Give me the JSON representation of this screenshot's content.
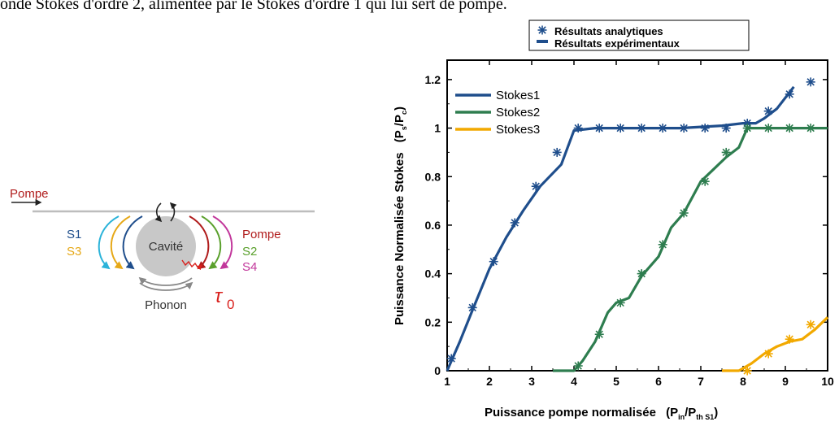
{
  "caption": "onde Stokes d'ordre 2, alimentée par le Stokes d'ordre 1 qui lui sert de pompe.",
  "diagram": {
    "pump_label": "Pompe",
    "left_labels": [
      "S1",
      "S3"
    ],
    "right_labels": [
      "Pompe",
      "S2",
      "S4"
    ],
    "cavity_label": "Cavité",
    "phonon_label": "Phonon",
    "loss_symbol": "τ",
    "loss_subscript": "0"
  },
  "chart_data": {
    "type": "line",
    "xlabel_main": "Puissance pompe normalisée",
    "xlabel_frac": "(P",
    "xlabel_sub1": "in",
    "xlabel_slash": "/P",
    "xlabel_sub2": "th S1",
    "xlabel_close": ")",
    "ylabel_main": "Puissance Normalisée Stokes",
    "ylabel_frac": "(P",
    "ylabel_sub1": "s",
    "ylabel_slash": "/P",
    "ylabel_sub2": "c",
    "ylabel_close": ")",
    "xlim": [
      1,
      10
    ],
    "ylim": [
      0,
      1.28
    ],
    "xticks": [
      "1",
      "2",
      "3",
      "4",
      "5",
      "6",
      "7",
      "8",
      "9",
      "10"
    ],
    "yticks": [
      {
        "v": 0,
        "label": "0"
      },
      {
        "v": 0.2,
        "label": "0.2"
      },
      {
        "v": 0.4,
        "label": "0.4"
      },
      {
        "v": 0.6,
        "label": "0.6"
      },
      {
        "v": 0.8,
        "label": "0.8"
      },
      {
        "v": 1.0,
        "label": "1"
      },
      {
        "v": 1.2,
        "label": "1.2"
      }
    ],
    "legend_top": [
      "Résultats analytiques",
      "Résultats expérimentaux"
    ],
    "series": [
      {
        "name": "Stokes1",
        "color": "#1f4e8c",
        "line": [
          [
            1,
            0
          ],
          [
            1.3,
            0.12
          ],
          [
            1.6,
            0.25
          ],
          [
            2,
            0.42
          ],
          [
            2.4,
            0.55
          ],
          [
            2.8,
            0.66
          ],
          [
            3.2,
            0.76
          ],
          [
            3.7,
            0.85
          ],
          [
            4,
            0.99
          ],
          [
            4.5,
            1.0
          ],
          [
            5,
            1.0
          ],
          [
            5.5,
            1.0
          ],
          [
            6,
            1.0
          ],
          [
            6.5,
            1.0
          ],
          [
            7,
            1.005
          ],
          [
            7.5,
            1.01
          ],
          [
            8,
            1.02
          ],
          [
            8.3,
            1.02
          ],
          [
            8.5,
            1.04
          ],
          [
            8.8,
            1.08
          ],
          [
            9.2,
            1.17
          ]
        ],
        "points": [
          [
            1.1,
            0.05
          ],
          [
            1.6,
            0.26
          ],
          [
            2.1,
            0.45
          ],
          [
            2.6,
            0.61
          ],
          [
            3.1,
            0.76
          ],
          [
            3.6,
            0.9
          ],
          [
            4.1,
            1.0
          ],
          [
            4.6,
            1.0
          ],
          [
            5.1,
            1.0
          ],
          [
            5.6,
            1.0
          ],
          [
            6.1,
            1.0
          ],
          [
            6.6,
            1.0
          ],
          [
            7.1,
            1.0
          ],
          [
            7.6,
            1.0
          ],
          [
            8.1,
            1.02
          ],
          [
            8.6,
            1.07
          ],
          [
            9.1,
            1.14
          ],
          [
            9.6,
            1.19
          ]
        ]
      },
      {
        "name": "Stokes2",
        "color": "#2e7d4f",
        "line": [
          [
            3.5,
            0
          ],
          [
            4,
            0
          ],
          [
            4.2,
            0.04
          ],
          [
            4.5,
            0.12
          ],
          [
            4.8,
            0.24
          ],
          [
            5,
            0.28
          ],
          [
            5.3,
            0.3
          ],
          [
            5.6,
            0.39
          ],
          [
            6,
            0.47
          ],
          [
            6.3,
            0.59
          ],
          [
            6.6,
            0.65
          ],
          [
            7,
            0.78
          ],
          [
            7.3,
            0.83
          ],
          [
            7.6,
            0.88
          ],
          [
            7.9,
            0.92
          ],
          [
            8.1,
            1.0
          ],
          [
            8.5,
            1.0
          ],
          [
            9,
            1.0
          ],
          [
            10,
            1.0
          ]
        ],
        "points": [
          [
            4.1,
            0.02
          ],
          [
            4.6,
            0.15
          ],
          [
            5.1,
            0.28
          ],
          [
            5.6,
            0.4
          ],
          [
            6.1,
            0.52
          ],
          [
            6.6,
            0.65
          ],
          [
            7.1,
            0.78
          ],
          [
            7.6,
            0.9
          ],
          [
            8.1,
            1.0
          ],
          [
            8.6,
            1.0
          ],
          [
            9.1,
            1.0
          ],
          [
            9.6,
            1.0
          ]
        ]
      },
      {
        "name": "Stokes3",
        "color": "#f2a900",
        "line": [
          [
            7.5,
            0
          ],
          [
            7.9,
            0
          ],
          [
            8.2,
            0.03
          ],
          [
            8.5,
            0.07
          ],
          [
            8.8,
            0.1
          ],
          [
            9.1,
            0.12
          ],
          [
            9.4,
            0.13
          ],
          [
            9.7,
            0.17
          ],
          [
            10,
            0.22
          ]
        ],
        "points": [
          [
            8.1,
            0.0
          ],
          [
            8.6,
            0.07
          ],
          [
            9.1,
            0.13
          ],
          [
            9.6,
            0.19
          ]
        ]
      }
    ]
  }
}
